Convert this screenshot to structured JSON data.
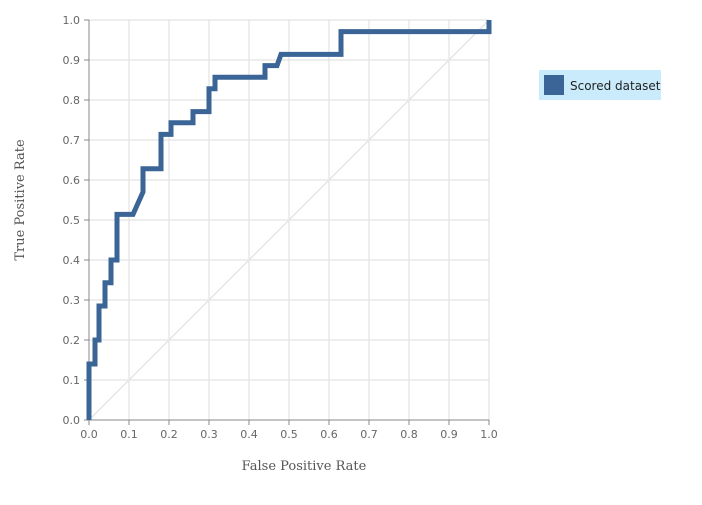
{
  "chart_data": {
    "type": "line",
    "title": "",
    "xlabel": "False Positive Rate",
    "ylabel": "True Positive Rate",
    "xlim": [
      0,
      1
    ],
    "ylim": [
      0,
      1
    ],
    "x_ticks": [
      "0.0",
      "0.1",
      "0.2",
      "0.3",
      "0.4",
      "0.5",
      "0.6",
      "0.7",
      "0.8",
      "0.9",
      "1.0"
    ],
    "y_ticks": [
      "0.0",
      "0.1",
      "0.2",
      "0.3",
      "0.4",
      "0.5",
      "0.6",
      "0.7",
      "0.8",
      "0.9",
      "1.0"
    ],
    "grid": true,
    "legend_position": "right",
    "colors": {
      "series": "#3a6596",
      "legend_bg": "#c9ebfb",
      "diagonal": "#e5e5e5",
      "grid": "#dddddd",
      "axis": "#888888"
    },
    "series": [
      {
        "name": "Scored dataset",
        "x": [
          0,
          0,
          0.015,
          0.015,
          0.025,
          0.025,
          0.04,
          0.04,
          0.055,
          0.055,
          0.07,
          0.07,
          0.11,
          0.135,
          0.135,
          0.18,
          0.18,
          0.205,
          0.205,
          0.26,
          0.26,
          0.3,
          0.3,
          0.315,
          0.315,
          0.44,
          0.44,
          0.47,
          0.48,
          0.48,
          0.63,
          0.63,
          1.0,
          1.0
        ],
        "y": [
          0,
          0.14,
          0.14,
          0.2,
          0.2,
          0.285,
          0.285,
          0.343,
          0.343,
          0.4,
          0.4,
          0.514,
          0.514,
          0.57,
          0.628,
          0.628,
          0.714,
          0.714,
          0.743,
          0.743,
          0.771,
          0.771,
          0.828,
          0.828,
          0.857,
          0.857,
          0.886,
          0.886,
          0.914,
          0.914,
          0.914,
          0.971,
          0.971,
          1.0
        ]
      },
      {
        "name": "",
        "role": "baseline",
        "x": [
          0,
          1
        ],
        "y": [
          0,
          1
        ]
      }
    ]
  }
}
